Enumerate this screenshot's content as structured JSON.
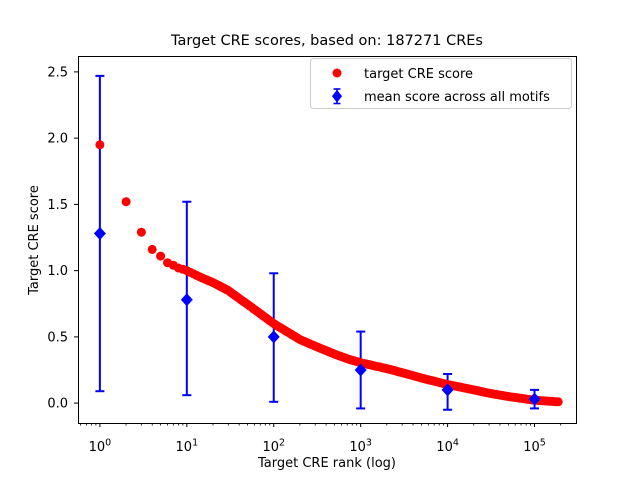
{
  "chart_data": {
    "type": "scatter",
    "title": "Target CRE scores, based on: 187271 CREs",
    "xlabel": "Target CRE rank (log)",
    "ylabel": "Target CRE score",
    "x_scale": "log",
    "xlim": [
      0.56,
      300000
    ],
    "ylim": [
      -0.15,
      2.62
    ],
    "x_tick_exponents": [
      0,
      1,
      2,
      3,
      4,
      5
    ],
    "y_tick_labels": [
      "0.0",
      "0.5",
      "1.0",
      "1.5",
      "2.0",
      "2.5"
    ],
    "grid": false,
    "legend_position": "upper right",
    "colors": {
      "red": "#ff0000",
      "blue": "#0000ff",
      "axis": "#000000",
      "text": "#000000",
      "legend_border": "#cccccc",
      "background": "#ffffff"
    },
    "series": [
      {
        "name": "target CRE score",
        "marker": "circle",
        "color": "#ff0000",
        "total_points": 187271,
        "curve_anchors": [
          [
            1,
            1.95
          ],
          [
            2,
            1.52
          ],
          [
            3,
            1.29
          ],
          [
            4,
            1.16
          ],
          [
            5,
            1.11
          ],
          [
            6,
            1.06
          ],
          [
            7,
            1.04
          ],
          [
            8,
            1.02
          ],
          [
            9,
            1.01
          ],
          [
            10,
            1.0
          ],
          [
            12,
            0.975
          ],
          [
            15,
            0.945
          ],
          [
            20,
            0.91
          ],
          [
            30,
            0.85
          ],
          [
            40,
            0.79
          ],
          [
            50,
            0.745
          ],
          [
            70,
            0.675
          ],
          [
            100,
            0.6
          ],
          [
            150,
            0.53
          ],
          [
            200,
            0.48
          ],
          [
            300,
            0.43
          ],
          [
            500,
            0.37
          ],
          [
            700,
            0.335
          ],
          [
            1000,
            0.305
          ],
          [
            2000,
            0.26
          ],
          [
            3000,
            0.23
          ],
          [
            5000,
            0.19
          ],
          [
            10000,
            0.14
          ],
          [
            20000,
            0.1
          ],
          [
            30000,
            0.075
          ],
          [
            50000,
            0.05
          ],
          [
            100000,
            0.022
          ],
          [
            150000,
            0.014
          ],
          [
            187271,
            0.01
          ]
        ]
      },
      {
        "name": "mean score across all motifs",
        "marker": "diamond",
        "color": "#0000ff",
        "points": [
          {
            "rank": 1,
            "mean": 1.28,
            "lo": 0.09,
            "hi": 2.47
          },
          {
            "rank": 10,
            "mean": 0.78,
            "lo": 0.06,
            "hi": 1.52
          },
          {
            "rank": 100,
            "mean": 0.5,
            "lo": 0.01,
            "hi": 0.98
          },
          {
            "rank": 1000,
            "mean": 0.25,
            "lo": -0.04,
            "hi": 0.54
          },
          {
            "rank": 10000,
            "mean": 0.1,
            "lo": -0.05,
            "hi": 0.22
          },
          {
            "rank": 100000,
            "mean": 0.03,
            "lo": -0.04,
            "hi": 0.1
          }
        ]
      }
    ]
  }
}
